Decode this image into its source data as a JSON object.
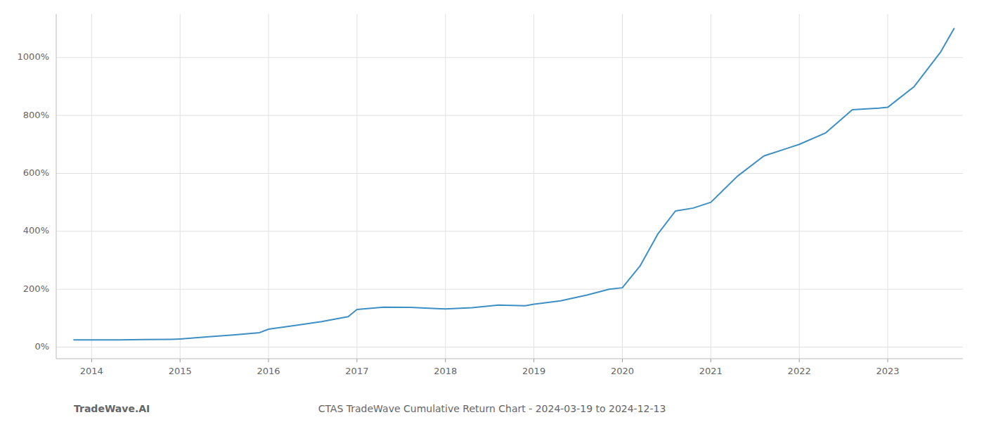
{
  "chart_data": {
    "type": "line",
    "title": "CTAS TradeWave Cumulative Return Chart - 2024-03-19 to 2024-12-13",
    "annotations": [
      "TradeWave.AI"
    ],
    "x": [
      2013.8,
      2014.0,
      2014.3,
      2014.6,
      2014.9,
      2015.0,
      2015.3,
      2015.6,
      2015.9,
      2016.0,
      2016.3,
      2016.6,
      2016.9,
      2017.0,
      2017.3,
      2017.6,
      2017.9,
      2018.0,
      2018.3,
      2018.6,
      2018.9,
      2019.0,
      2019.3,
      2019.6,
      2019.85,
      2020.0,
      2020.2,
      2020.4,
      2020.6,
      2020.8,
      2021.0,
      2021.3,
      2021.6,
      2021.9,
      2022.0,
      2022.3,
      2022.6,
      2022.9,
      2023.0,
      2023.3,
      2023.6,
      2023.75
    ],
    "values": [
      25,
      25,
      25,
      26,
      27,
      28,
      35,
      42,
      50,
      62,
      75,
      88,
      105,
      130,
      138,
      137,
      133,
      132,
      136,
      145,
      143,
      148,
      160,
      180,
      200,
      205,
      280,
      390,
      470,
      480,
      500,
      590,
      660,
      690,
      700,
      740,
      820,
      825,
      828,
      900,
      1020,
      1100
    ],
    "color": "#3d8fc4",
    "xlim": [
      2013.6,
      2023.85
    ],
    "ylim": [
      -40,
      1150
    ],
    "xticks": [
      2014,
      2015,
      2016,
      2017,
      2018,
      2019,
      2020,
      2021,
      2022,
      2023
    ],
    "yticks": [
      {
        "value": 0,
        "label": "0%"
      },
      {
        "value": 200,
        "label": "200%"
      },
      {
        "value": 400,
        "label": "400%"
      },
      {
        "value": 600,
        "label": "600%"
      },
      {
        "value": 800,
        "label": "800%"
      },
      {
        "value": 1000,
        "label": "1000%"
      }
    ],
    "grid": true
  }
}
